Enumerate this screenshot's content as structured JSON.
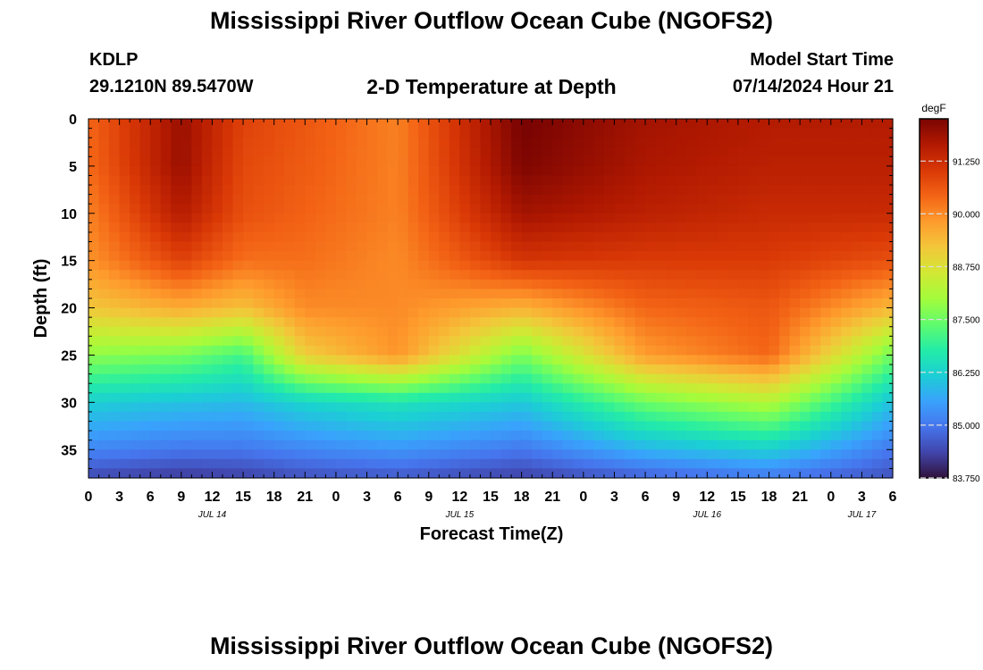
{
  "header": {
    "title": "Mississippi River Outflow Ocean Cube (NGOFS2)",
    "station": "KDLP",
    "coords": "29.1210N  89.5470W",
    "subtitle": "2-D Temperature at Depth",
    "model_start_label": "Model Start Time",
    "model_start_value": "07/14/2024 Hour 21"
  },
  "footer": {
    "title": "Mississippi River Outflow Ocean Cube (NGOFS2)"
  },
  "chart_data": {
    "type": "heatmap",
    "title": "2-D Temperature at Depth",
    "xlabel": "Forecast Time(Z)",
    "ylabel": "Depth (ft)",
    "colorbar_label": "degF",
    "xlim": [
      0,
      78
    ],
    "ylim": [
      0,
      38
    ],
    "y_inverted": true,
    "x_ticks": [
      0,
      3,
      6,
      9,
      12,
      15,
      18,
      21,
      24,
      27,
      30,
      33,
      36,
      39,
      42,
      45,
      48,
      51,
      54,
      57,
      60,
      63,
      66,
      69,
      72,
      75,
      78
    ],
    "x_tick_labels": [
      "0",
      "3",
      "6",
      "9",
      "12",
      "15",
      "18",
      "21",
      "0",
      "3",
      "6",
      "9",
      "12",
      "15",
      "18",
      "21",
      "0",
      "3",
      "6",
      "9",
      "12",
      "15",
      "18",
      "21",
      "0",
      "3",
      "6"
    ],
    "y_ticks": [
      0,
      5,
      10,
      15,
      20,
      25,
      30,
      35
    ],
    "y_tick_labels": [
      "0",
      "5",
      "10",
      "15",
      "20",
      "25",
      "30",
      "35"
    ],
    "date_labels": [
      {
        "x": 12,
        "text": "JUL 14"
      },
      {
        "x": 36,
        "text": "JUL 15"
      },
      {
        "x": 60,
        "text": "JUL 16"
      },
      {
        "x": 75,
        "text": "JUL 17"
      }
    ],
    "colorbar": {
      "min": 83.75,
      "max": 92.25,
      "ticks": [
        83.75,
        85.0,
        86.25,
        87.5,
        88.75,
        90.0,
        91.25
      ],
      "tick_labels": [
        "83.750",
        "85.000",
        "86.250",
        "87.500",
        "88.750",
        "90.000",
        "91.250"
      ],
      "colors": [
        "#30123b",
        "#4145ab",
        "#4675ed",
        "#39a2fc",
        "#1bcfd4",
        "#24eca6",
        "#61fc6c",
        "#a4fc3b",
        "#d1e834",
        "#f3c63a",
        "#fe9b2d",
        "#f36315",
        "#d93806",
        "#b11901",
        "#7a0402"
      ]
    },
    "x_hours": [
      0,
      9,
      15,
      21,
      30,
      42,
      54,
      66,
      78
    ],
    "depths_ft": [
      0,
      5,
      10,
      15,
      20,
      25,
      30,
      35,
      38
    ],
    "temperature_degF": [
      [
        90.4,
        90.35,
        90.1,
        89.9,
        89.2,
        87.8,
        86.2,
        85.2,
        84.4
      ],
      [
        91.9,
        91.9,
        91.6,
        90.9,
        89.6,
        87.6,
        86.0,
        85.0,
        84.2
      ],
      [
        90.9,
        90.8,
        90.7,
        90.3,
        89.3,
        87.1,
        85.9,
        85.0,
        84.3
      ],
      [
        90.6,
        90.55,
        90.45,
        90.3,
        90.0,
        89.1,
        86.3,
        85.2,
        84.5
      ],
      [
        90.1,
        90.1,
        90.1,
        90.0,
        90.0,
        89.9,
        86.6,
        85.4,
        84.6
      ],
      [
        92.3,
        92.2,
        91.8,
        91.1,
        89.5,
        87.6,
        86.1,
        85.0,
        84.3
      ],
      [
        91.8,
        91.7,
        91.5,
        91.0,
        90.4,
        89.8,
        87.5,
        85.8,
        84.7
      ],
      [
        91.6,
        91.5,
        91.3,
        91.0,
        90.6,
        90.4,
        88.2,
        86.2,
        85.0
      ],
      [
        91.6,
        91.5,
        91.3,
        90.7,
        89.4,
        87.5,
        86.0,
        85.0,
        84.5
      ]
    ]
  }
}
